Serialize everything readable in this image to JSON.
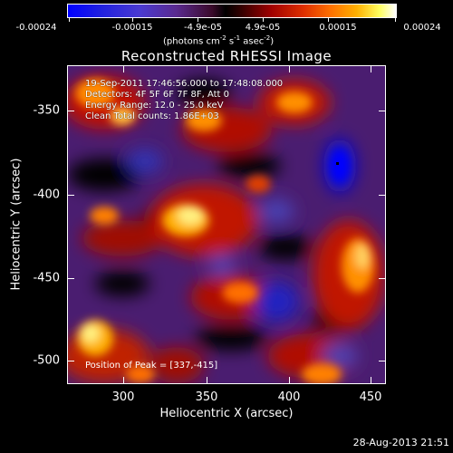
{
  "colorbar": {
    "tick_labels": [
      "-0.00024",
      "-0.00015",
      "-4.9e-05",
      "4.9e-05",
      "0.00015",
      "0.00024"
    ],
    "units_prefix": "(photons cm",
    "units_exp1": "-2",
    "units_mid": " s",
    "units_exp2": "-1",
    "units_mid2": " asec",
    "units_exp3": "-2",
    "units_suffix": ")"
  },
  "title": "Reconstructed RHESSI Image",
  "info_lines": [
    "19-Sep-2011 17:46:56.000 to 17:48:08.000",
    "Detectors: 4F 5F 6F 7F 8F, Att 0",
    "Energy Range: 12.0 - 25.0 keV",
    "Clean     Total counts: 1.86E+03"
  ],
  "peak_label": "Position of Peak = [337,-415]",
  "x_axis": {
    "label": "Heliocentric X (arcsec)",
    "ticks": [
      "300",
      "350",
      "400",
      "450"
    ]
  },
  "y_axis": {
    "label": "Heliocentric Y (arcsec)",
    "ticks": [
      "-350",
      "-400",
      "-450",
      "-500"
    ]
  },
  "timestamp": "28-Aug-2013 21:51"
}
